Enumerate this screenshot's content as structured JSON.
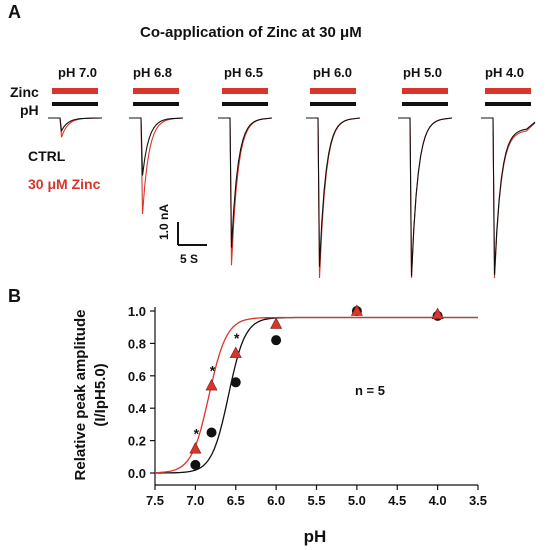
{
  "panel_a": {
    "letter": "A",
    "title": "Co-application of Zinc at 30 μM",
    "row_labels": {
      "zinc": "Zinc",
      "ph": "pH"
    },
    "legend": {
      "ctrl": "CTRL",
      "zinc": "30 μM Zinc"
    },
    "colors": {
      "zinc_bar": "#d9352b",
      "ph_bar": "#111111",
      "ctrl_trace": "#111111",
      "zinc_trace": "#d9352b"
    },
    "conditions": [
      {
        "ph": "pH 7.0",
        "ctrl_peak_rel": 0.08,
        "zinc_peak_rel": 0.12
      },
      {
        "ph": "pH 6.8",
        "ctrl_peak_rel": 0.36,
        "zinc_peak_rel": 0.6
      },
      {
        "ph": "pH 6.5",
        "ctrl_peak_rel": 0.81,
        "zinc_peak_rel": 0.92
      },
      {
        "ph": "pH 6.0",
        "ctrl_peak_rel": 0.93,
        "zinc_peak_rel": 1.0
      },
      {
        "ph": "pH 5.0",
        "ctrl_peak_rel": 0.99,
        "zinc_peak_rel": 1.0
      },
      {
        "ph": "pH 4.0",
        "ctrl_peak_rel": 0.98,
        "zinc_peak_rel": 1.0
      }
    ],
    "scale_bar": {
      "y_label": "1.0 nA",
      "x_label": "5 S"
    }
  },
  "panel_b": {
    "letter": "B",
    "annotation": "n = 5",
    "chart_data": {
      "type": "scatter",
      "xlabel": "pH",
      "ylabel": "Relative peak amplitude (I/IpH5.0)",
      "xlim": [
        7.5,
        3.5
      ],
      "ylim": [
        0.0,
        1.0
      ],
      "x_ticks": [
        "7.5",
        "7.0",
        "6.5",
        "6.0",
        "5.5",
        "5.0",
        "4.5",
        "4.0",
        "3.5"
      ],
      "y_ticks": [
        "0.0",
        "0.2",
        "0.4",
        "0.6",
        "0.8",
        "1.0"
      ],
      "series": [
        {
          "marker": "circle",
          "color": "#111111",
          "x": [
            7.0,
            6.8,
            6.5,
            6.0,
            5.0,
            4.0
          ],
          "y": [
            0.05,
            0.25,
            0.56,
            0.82,
            1.0,
            0.97
          ]
        },
        {
          "marker": "triangle",
          "color": "#d9352b",
          "x": [
            7.0,
            6.8,
            6.5,
            6.0,
            5.0,
            4.0
          ],
          "y": [
            0.15,
            0.54,
            0.74,
            0.92,
            1.0,
            0.98
          ]
        }
      ],
      "fits": [
        {
          "color": "#111111",
          "bottom": 0.0,
          "top": 0.96,
          "pH50": 6.59,
          "slope": 4.2
        },
        {
          "color": "#d9352b",
          "bottom": 0.0,
          "top": 0.96,
          "pH50": 6.83,
          "slope": 4.0
        }
      ],
      "significance_marks": [
        {
          "x": 7.0,
          "label": "*"
        },
        {
          "x": 6.8,
          "label": "*"
        },
        {
          "x": 6.5,
          "label": "*"
        }
      ]
    }
  }
}
